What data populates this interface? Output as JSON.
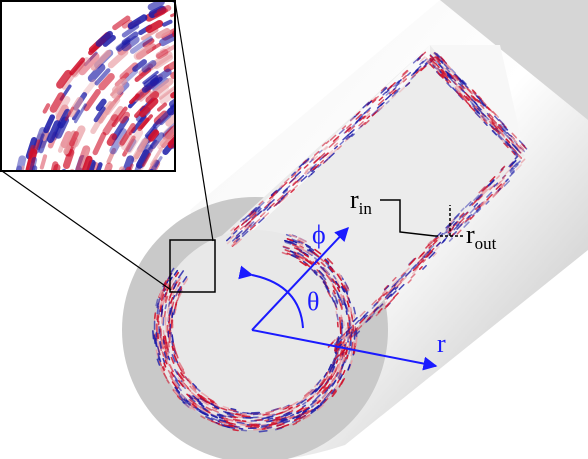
{
  "labels": {
    "r_in": {
      "text": "r",
      "sub": "in"
    },
    "r_out": {
      "text": "r",
      "sub": "out"
    },
    "phi": "ϕ",
    "theta": "θ",
    "r": "r"
  }
}
